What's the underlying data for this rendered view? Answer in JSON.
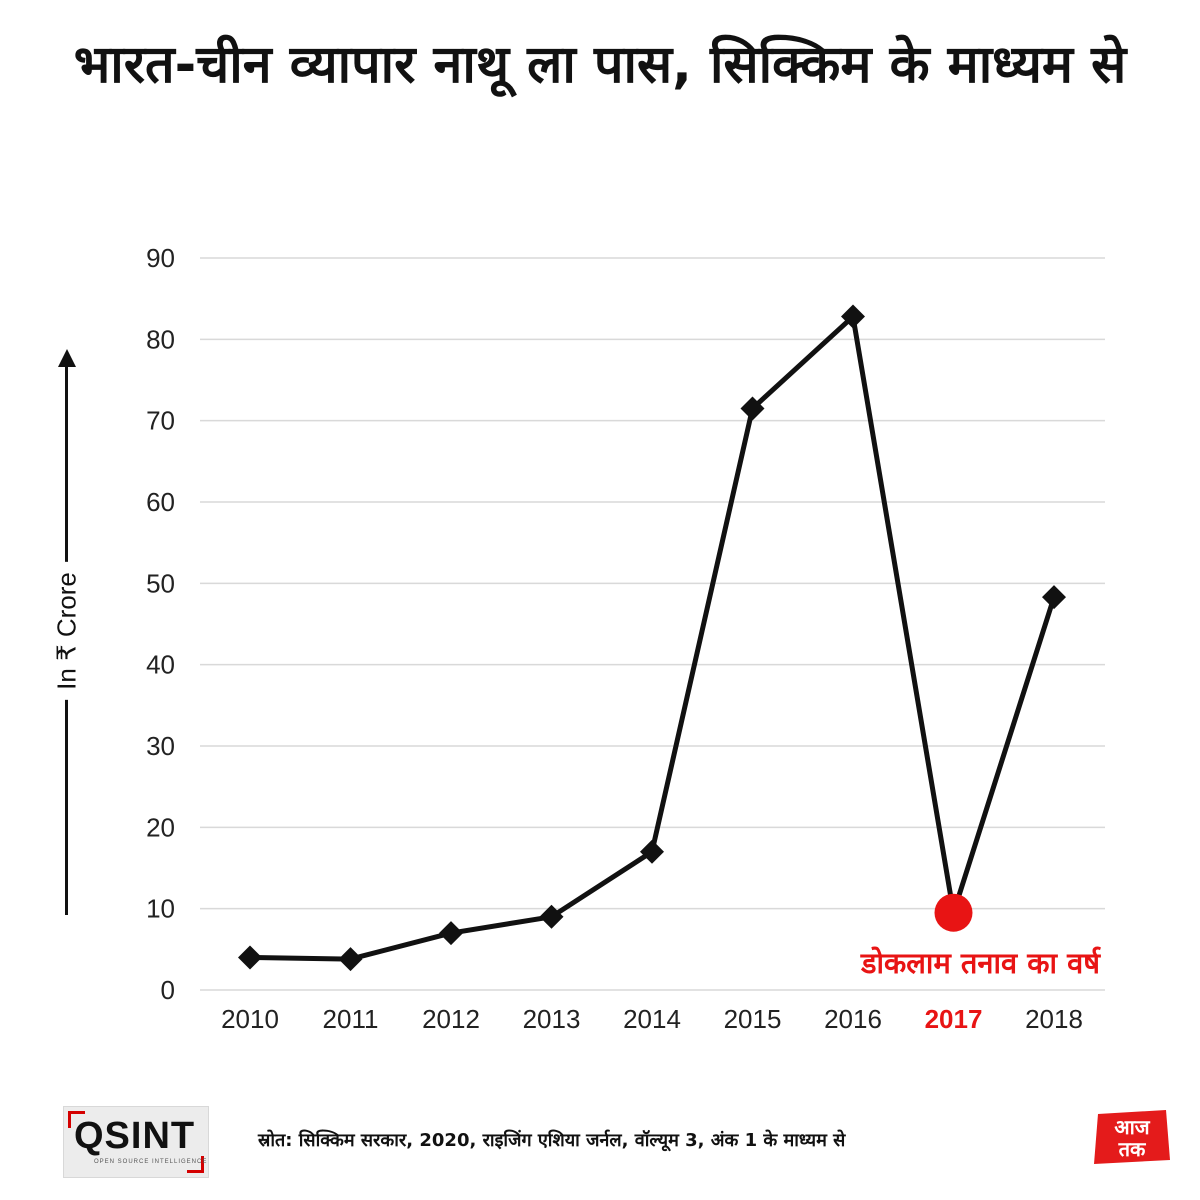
{
  "title": "भारत-चीन व्यापार नाथू ला पास, सिक्किम के माध्यम से",
  "ylabel": "In ₹ Crore",
  "annotation": "डोकलाम तनाव का वर्ष",
  "source": "स्रोत: सिक्किम सरकार, 2020, राइजिंग एशिया जर्नल, वॉल्यूम 3, अंक 1 के माध्यम से",
  "logo_left": {
    "text": "QSINT",
    "subtext": "OPEN SOURCE INTELLIGENCE"
  },
  "logo_right": {
    "text_top": "आज",
    "text_bottom": "तक"
  },
  "colors": {
    "line": "#111111",
    "highlight": "#e81414",
    "grid": "#d9d9d9",
    "axis_text": "#222222"
  },
  "chart_data": {
    "type": "line",
    "title": "भारत-चीन व्यापार नाथू ला पास, सिक्किम के माध्यम से",
    "xlabel": "",
    "ylabel": "In ₹ Crore",
    "ylim": [
      0,
      90
    ],
    "yticks": [
      0,
      10,
      20,
      30,
      40,
      50,
      60,
      70,
      80,
      90
    ],
    "categories": [
      "2010",
      "2011",
      "2012",
      "2013",
      "2014",
      "2015",
      "2016",
      "2017",
      "2018"
    ],
    "values": [
      4,
      3.8,
      7,
      9,
      17,
      71.5,
      82.8,
      9.5,
      48.3
    ],
    "highlight": {
      "category": "2017",
      "label": "डोकलाम तनाव का वर्ष",
      "color": "#e81414"
    },
    "grid": true,
    "legend": "none"
  }
}
